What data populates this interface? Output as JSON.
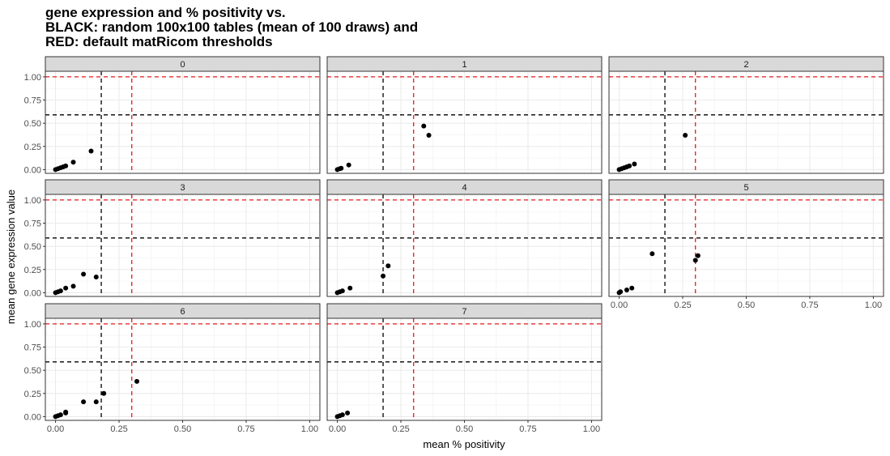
{
  "chart_data": {
    "type": "scatter",
    "title_lines": [
      "gene expression and % positivity vs.",
      "BLACK: random 100x100 tables (mean of 100 draws) and",
      "RED: default matRicom thresholds"
    ],
    "xlabel": "mean % positivity",
    "ylabel": "mean gene expression value",
    "xlim": [
      -0.04,
      1.04
    ],
    "ylim": [
      -0.04,
      1.06
    ],
    "x_ticks": [
      0.0,
      0.25,
      0.5,
      0.75,
      1.0
    ],
    "x_tick_labels": [
      "0.00",
      "0.25",
      "0.50",
      "0.75",
      "1.00"
    ],
    "y_ticks": [
      0.0,
      0.25,
      0.5,
      0.75,
      1.0
    ],
    "y_tick_labels": [
      "0.00",
      "0.25",
      "0.50",
      "0.75",
      "1.00"
    ],
    "grid": true,
    "reference_lines": {
      "black": {
        "x": 0.18,
        "y": 0.59,
        "color": "#000000"
      },
      "red": {
        "x": 0.3,
        "y": 1.0,
        "color": "#e41a1c"
      }
    },
    "point_color": "#000000",
    "facets": [
      {
        "label": "0",
        "points": [
          [
            0.0,
            0.0
          ],
          [
            0.01,
            0.01
          ],
          [
            0.02,
            0.02
          ],
          [
            0.03,
            0.03
          ],
          [
            0.04,
            0.04
          ],
          [
            0.07,
            0.08
          ],
          [
            0.14,
            0.2
          ]
        ]
      },
      {
        "label": "1",
        "points": [
          [
            0.0,
            0.0
          ],
          [
            0.01,
            0.01
          ],
          [
            0.015,
            0.015
          ],
          [
            0.045,
            0.05
          ],
          [
            0.34,
            0.47
          ],
          [
            0.36,
            0.37
          ]
        ]
      },
      {
        "label": "2",
        "points": [
          [
            0.0,
            0.0
          ],
          [
            0.01,
            0.01
          ],
          [
            0.02,
            0.02
          ],
          [
            0.03,
            0.03
          ],
          [
            0.04,
            0.04
          ],
          [
            0.06,
            0.06
          ],
          [
            0.26,
            0.37
          ]
        ]
      },
      {
        "label": "3",
        "points": [
          [
            0.0,
            0.0
          ],
          [
            0.01,
            0.01
          ],
          [
            0.02,
            0.02
          ],
          [
            0.04,
            0.05
          ],
          [
            0.07,
            0.07
          ],
          [
            0.11,
            0.2
          ],
          [
            0.16,
            0.17
          ]
        ]
      },
      {
        "label": "4",
        "points": [
          [
            0.0,
            0.0
          ],
          [
            0.01,
            0.01
          ],
          [
            0.02,
            0.02
          ],
          [
            0.05,
            0.05
          ],
          [
            0.18,
            0.18
          ],
          [
            0.2,
            0.29
          ]
        ]
      },
      {
        "label": "5",
        "points": [
          [
            0.0,
            0.0
          ],
          [
            0.005,
            0.01
          ],
          [
            0.03,
            0.03
          ],
          [
            0.05,
            0.05
          ],
          [
            0.13,
            0.42
          ],
          [
            0.3,
            0.35
          ],
          [
            0.31,
            0.4
          ]
        ]
      },
      {
        "label": "6",
        "points": [
          [
            0.0,
            0.0
          ],
          [
            0.01,
            0.01
          ],
          [
            0.02,
            0.02
          ],
          [
            0.04,
            0.04
          ],
          [
            0.04,
            0.05
          ],
          [
            0.11,
            0.16
          ],
          [
            0.16,
            0.16
          ],
          [
            0.19,
            0.25
          ],
          [
            0.32,
            0.38
          ]
        ]
      },
      {
        "label": "7",
        "points": [
          [
            0.0,
            0.0
          ],
          [
            0.01,
            0.01
          ],
          [
            0.02,
            0.02
          ],
          [
            0.04,
            0.04
          ]
        ]
      }
    ]
  }
}
